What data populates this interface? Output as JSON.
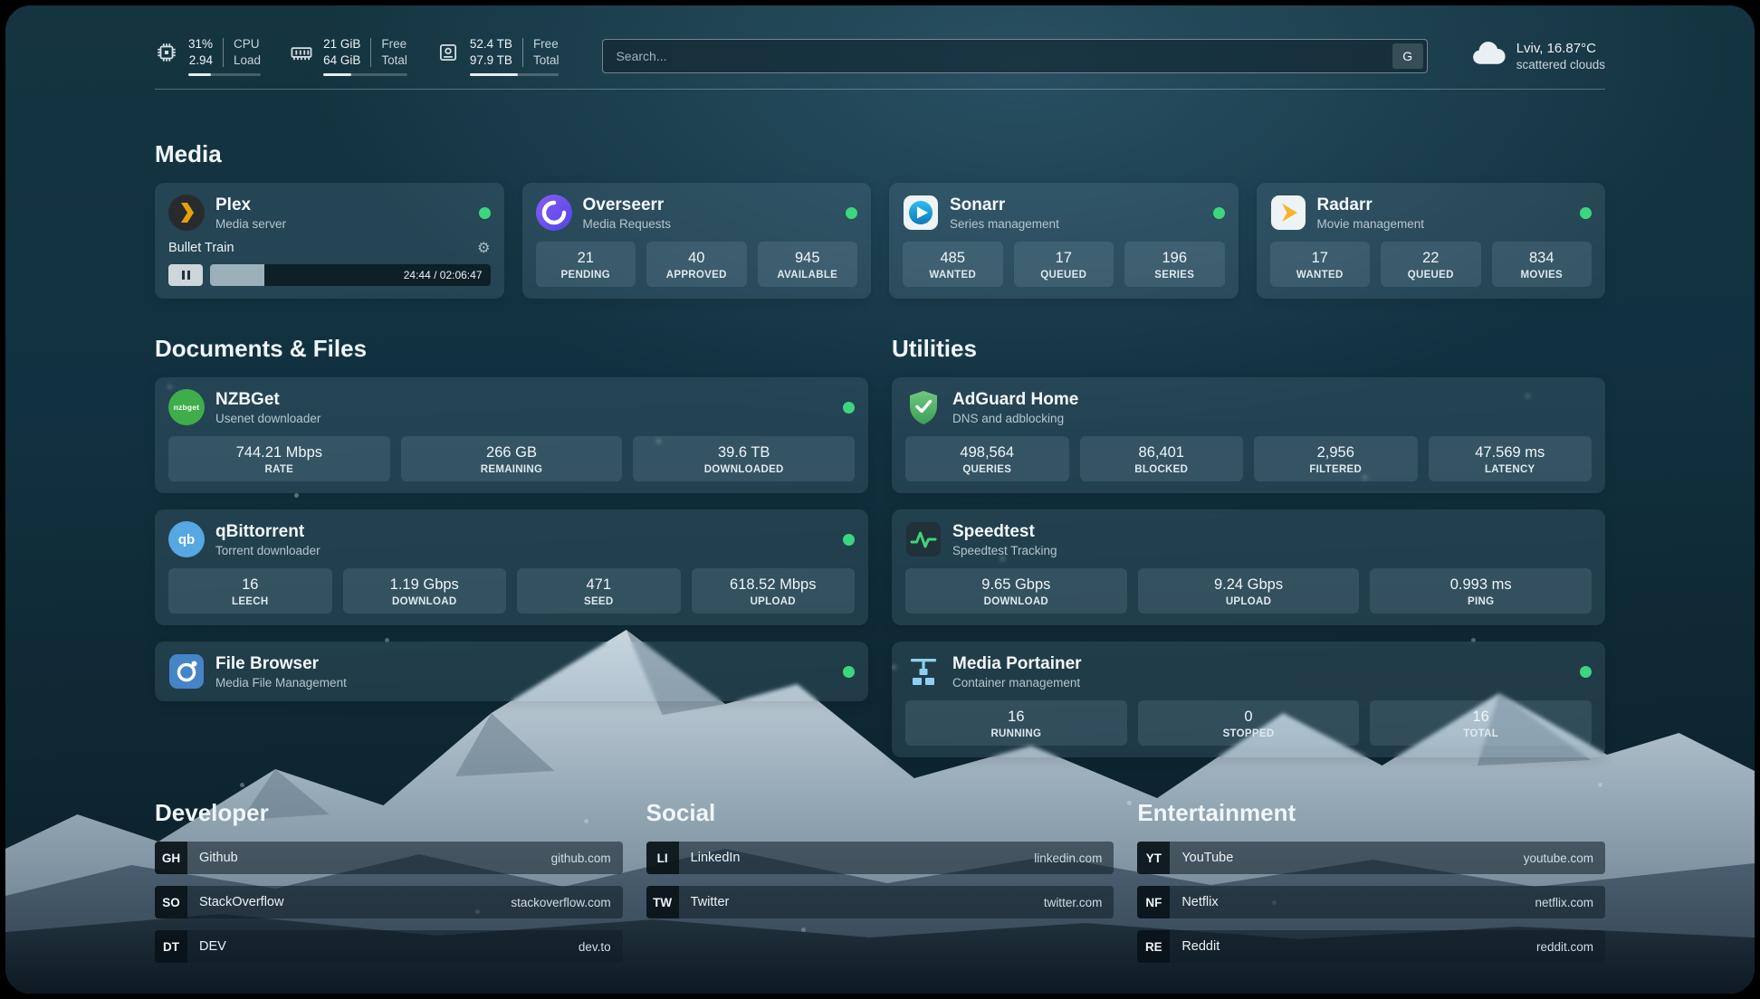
{
  "header": {
    "cpu": {
      "value_percent": "31%",
      "value_load": "2.94",
      "label_top": "CPU",
      "label_bottom": "Load",
      "progress": 31
    },
    "memory": {
      "value_free": "21 GiB",
      "value_total": "64 GiB",
      "label_top": "Free",
      "label_bottom": "Total",
      "progress": 33
    },
    "disk": {
      "value_free": "52.4 TB",
      "value_total": "97.9 TB",
      "label_top": "Free",
      "label_bottom": "Total",
      "progress": 54
    },
    "search": {
      "placeholder": "Search...",
      "engine_button": "G"
    },
    "weather": {
      "location": "Lviv, 16.87°C",
      "condition": "scattered clouds"
    }
  },
  "media": {
    "title": "Media",
    "plex": {
      "name": "Plex",
      "description": "Media server",
      "online": true,
      "now_playing": "Bullet Train",
      "time": "24:44 / 02:06:47",
      "progress_percent": 19.5
    },
    "overseerr": {
      "name": "Overseerr",
      "description": "Media Requests",
      "online": true,
      "stats": [
        {
          "value": "21",
          "label": "PENDING"
        },
        {
          "value": "40",
          "label": "APPROVED"
        },
        {
          "value": "945",
          "label": "AVAILABLE"
        }
      ]
    },
    "sonarr": {
      "name": "Sonarr",
      "description": "Series management",
      "online": true,
      "stats": [
        {
          "value": "485",
          "label": "WANTED"
        },
        {
          "value": "17",
          "label": "QUEUED"
        },
        {
          "value": "196",
          "label": "SERIES"
        }
      ]
    },
    "radarr": {
      "name": "Radarr",
      "description": "Movie management",
      "online": true,
      "stats": [
        {
          "value": "17",
          "label": "WANTED"
        },
        {
          "value": "22",
          "label": "QUEUED"
        },
        {
          "value": "834",
          "label": "MOVIES"
        }
      ]
    }
  },
  "documents": {
    "title": "Documents & Files",
    "nzbget": {
      "name": "NZBGet",
      "description": "Usenet downloader",
      "online": true,
      "icon_label": "nzbget",
      "stats": [
        {
          "value": "744.21 Mbps",
          "label": "RATE"
        },
        {
          "value": "266 GB",
          "label": "REMAINING"
        },
        {
          "value": "39.6 TB",
          "label": "DOWNLOADED"
        }
      ]
    },
    "qbittorrent": {
      "name": "qBittorrent",
      "description": "Torrent downloader",
      "online": true,
      "icon_label": "qb",
      "stats": [
        {
          "value": "16",
          "label": "LEECH"
        },
        {
          "value": "1.19 Gbps",
          "label": "DOWNLOAD"
        },
        {
          "value": "471",
          "label": "SEED"
        },
        {
          "value": "618.52 Mbps",
          "label": "UPLOAD"
        }
      ]
    },
    "filebrowser": {
      "name": "File Browser",
      "description": "Media File Management",
      "online": true
    }
  },
  "utilities": {
    "title": "Utilities",
    "adguard": {
      "name": "AdGuard Home",
      "description": "DNS and adblocking",
      "stats": [
        {
          "value": "498,564",
          "label": "QUERIES"
        },
        {
          "value": "86,401",
          "label": "BLOCKED"
        },
        {
          "value": "2,956",
          "label": "FILTERED"
        },
        {
          "value": "47.569 ms",
          "label": "LATENCY"
        }
      ]
    },
    "speedtest": {
      "name": "Speedtest",
      "description": "Speedtest Tracking",
      "stats": [
        {
          "value": "9.65 Gbps",
          "label": "DOWNLOAD"
        },
        {
          "value": "9.24 Gbps",
          "label": "UPLOAD"
        },
        {
          "value": "0.993 ms",
          "label": "PING"
        }
      ]
    },
    "portainer": {
      "name": "Media Portainer",
      "description": "Container management",
      "online": true,
      "stats": [
        {
          "value": "16",
          "label": "RUNNING"
        },
        {
          "value": "0",
          "label": "STOPPED"
        },
        {
          "value": "16",
          "label": "TOTAL"
        }
      ]
    }
  },
  "links": {
    "developer": {
      "title": "Developer",
      "items": [
        {
          "badge": "GH",
          "name": "Github",
          "url": "github.com"
        },
        {
          "badge": "SO",
          "name": "StackOverflow",
          "url": "stackoverflow.com"
        },
        {
          "badge": "DT",
          "name": "DEV",
          "url": "dev.to"
        }
      ]
    },
    "social": {
      "title": "Social",
      "items": [
        {
          "badge": "LI",
          "name": "LinkedIn",
          "url": "linkedin.com"
        },
        {
          "badge": "TW",
          "name": "Twitter",
          "url": "twitter.com"
        }
      ]
    },
    "entertainment": {
      "title": "Entertainment",
      "items": [
        {
          "badge": "YT",
          "name": "YouTube",
          "url": "youtube.com"
        },
        {
          "badge": "NF",
          "name": "Netflix",
          "url": "netflix.com"
        },
        {
          "badge": "RE",
          "name": "Reddit",
          "url": "reddit.com"
        }
      ]
    }
  },
  "icons": {
    "gear": "⚙",
    "pause": "css-bars",
    "cloud": "svg-cloud",
    "cpu": "svg-chip",
    "memory": "svg-ram",
    "disk": "svg-drive"
  },
  "colors": {
    "status_online": "#3bd67e",
    "plex_amber": "#e5a00d",
    "overseerr_purple": "#6d5ce8",
    "sonarr_blue": "#2fbcf2",
    "radarr_amber": "#f7b32b",
    "nzbget_green": "#3fae4a",
    "qbittorrent_blue": "#55a8e2",
    "filebrowser_blue": "#4584c7",
    "adguard_green": "#5cb86e",
    "speedtest_green": "#41d17c",
    "portainer_blue": "#8fd0f2"
  }
}
